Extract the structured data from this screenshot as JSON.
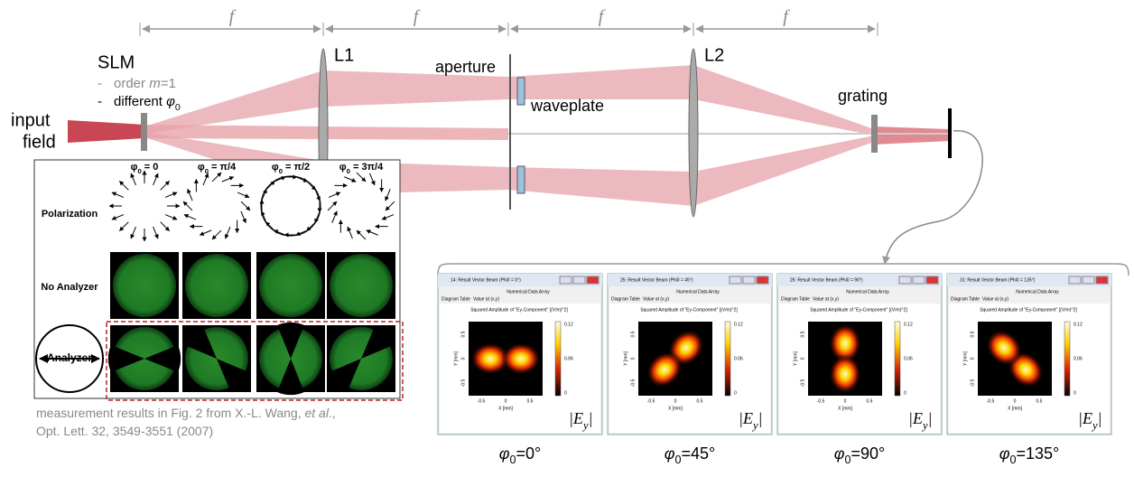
{
  "optics": {
    "f_labels": [
      "f",
      "f",
      "f",
      "f"
    ],
    "slm": {
      "title": "SLM",
      "items": [
        {
          "bullet": "-",
          "parts": [
            "order ",
            "m",
            "=1"
          ]
        },
        {
          "bullet": "-",
          "parts": [
            "different ",
            "φ",
            "0"
          ]
        }
      ]
    },
    "input_field": [
      "input",
      "field"
    ],
    "l1": "L1",
    "aperture": "aperture",
    "waveplate": "waveplate",
    "l2": "L2",
    "grating": "grating"
  },
  "measurement": {
    "columns": [
      {
        "base": "φ",
        "sub": "0",
        "rest": " = 0"
      },
      {
        "base": "φ",
        "sub": "0",
        "rest": " = π/4"
      },
      {
        "base": "φ",
        "sub": "0",
        "rest": " = π/2"
      },
      {
        "base": "φ",
        "sub": "0",
        "rest": " = 3π/4"
      }
    ],
    "rows": [
      "Polarization",
      "No Analyzer",
      "Analyzer"
    ],
    "caption": [
      [
        "measurement results in Fig. 2 from X.-L. Wang, ",
        "et al",
        ".,"
      ],
      [
        "Opt. Lett. 32, 3549-3551 (2007)"
      ]
    ]
  },
  "windows": {
    "common": {
      "tab_header": "Numerical Data Array",
      "tabs": [
        "Diagram",
        "Table",
        "Value at (x,y)"
      ],
      "plot_title": "Squared Amplitude of \"Ey-Component\"  [(V/m)^2]",
      "colorbar_ticks": [
        "0.12",
        "0.06",
        "0"
      ],
      "x_label": "X [mm]",
      "y_label": "Y [mm]",
      "axis_ticks": [
        "-0.5",
        "0",
        "0.5"
      ],
      "field": {
        "base": "|E",
        "sub": "y",
        "close": "|"
      }
    },
    "items": [
      {
        "title": "14: Result Vector Beam (Phi0 = 0°)",
        "label": {
          "base": "φ",
          "sub": "0",
          "rest": "=0°"
        }
      },
      {
        "title": "25: Result Vector Beam (Phi0 = 45°)",
        "label": {
          "base": "φ",
          "sub": "0",
          "rest": "=45°"
        }
      },
      {
        "title": "26: Result Vector Beam (Phi0 = 90°)",
        "label": {
          "base": "φ",
          "sub": "0",
          "rest": "=90°"
        }
      },
      {
        "title": "31: Result Vector Beam (Phi0 = 135°)",
        "label": {
          "base": "φ",
          "sub": "0",
          "rest": "=135°"
        }
      }
    ]
  }
}
